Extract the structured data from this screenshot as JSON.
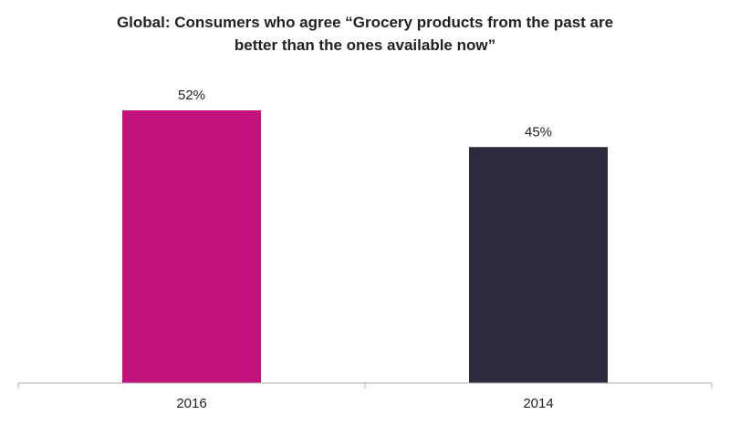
{
  "chart_data": {
    "type": "bar",
    "title_lines": [
      "Global: Consumers who agree “Grocery products from the past are",
      "better than the ones available now”"
    ],
    "categories": [
      "2016",
      "2014"
    ],
    "values": [
      52,
      45
    ],
    "value_labels": [
      "52%",
      "45%"
    ],
    "colors": [
      "#c2137c",
      "#2e293d"
    ],
    "xlabel": "",
    "ylabel": "",
    "ylim": [
      0,
      60
    ],
    "grid": false,
    "legend": "none"
  }
}
